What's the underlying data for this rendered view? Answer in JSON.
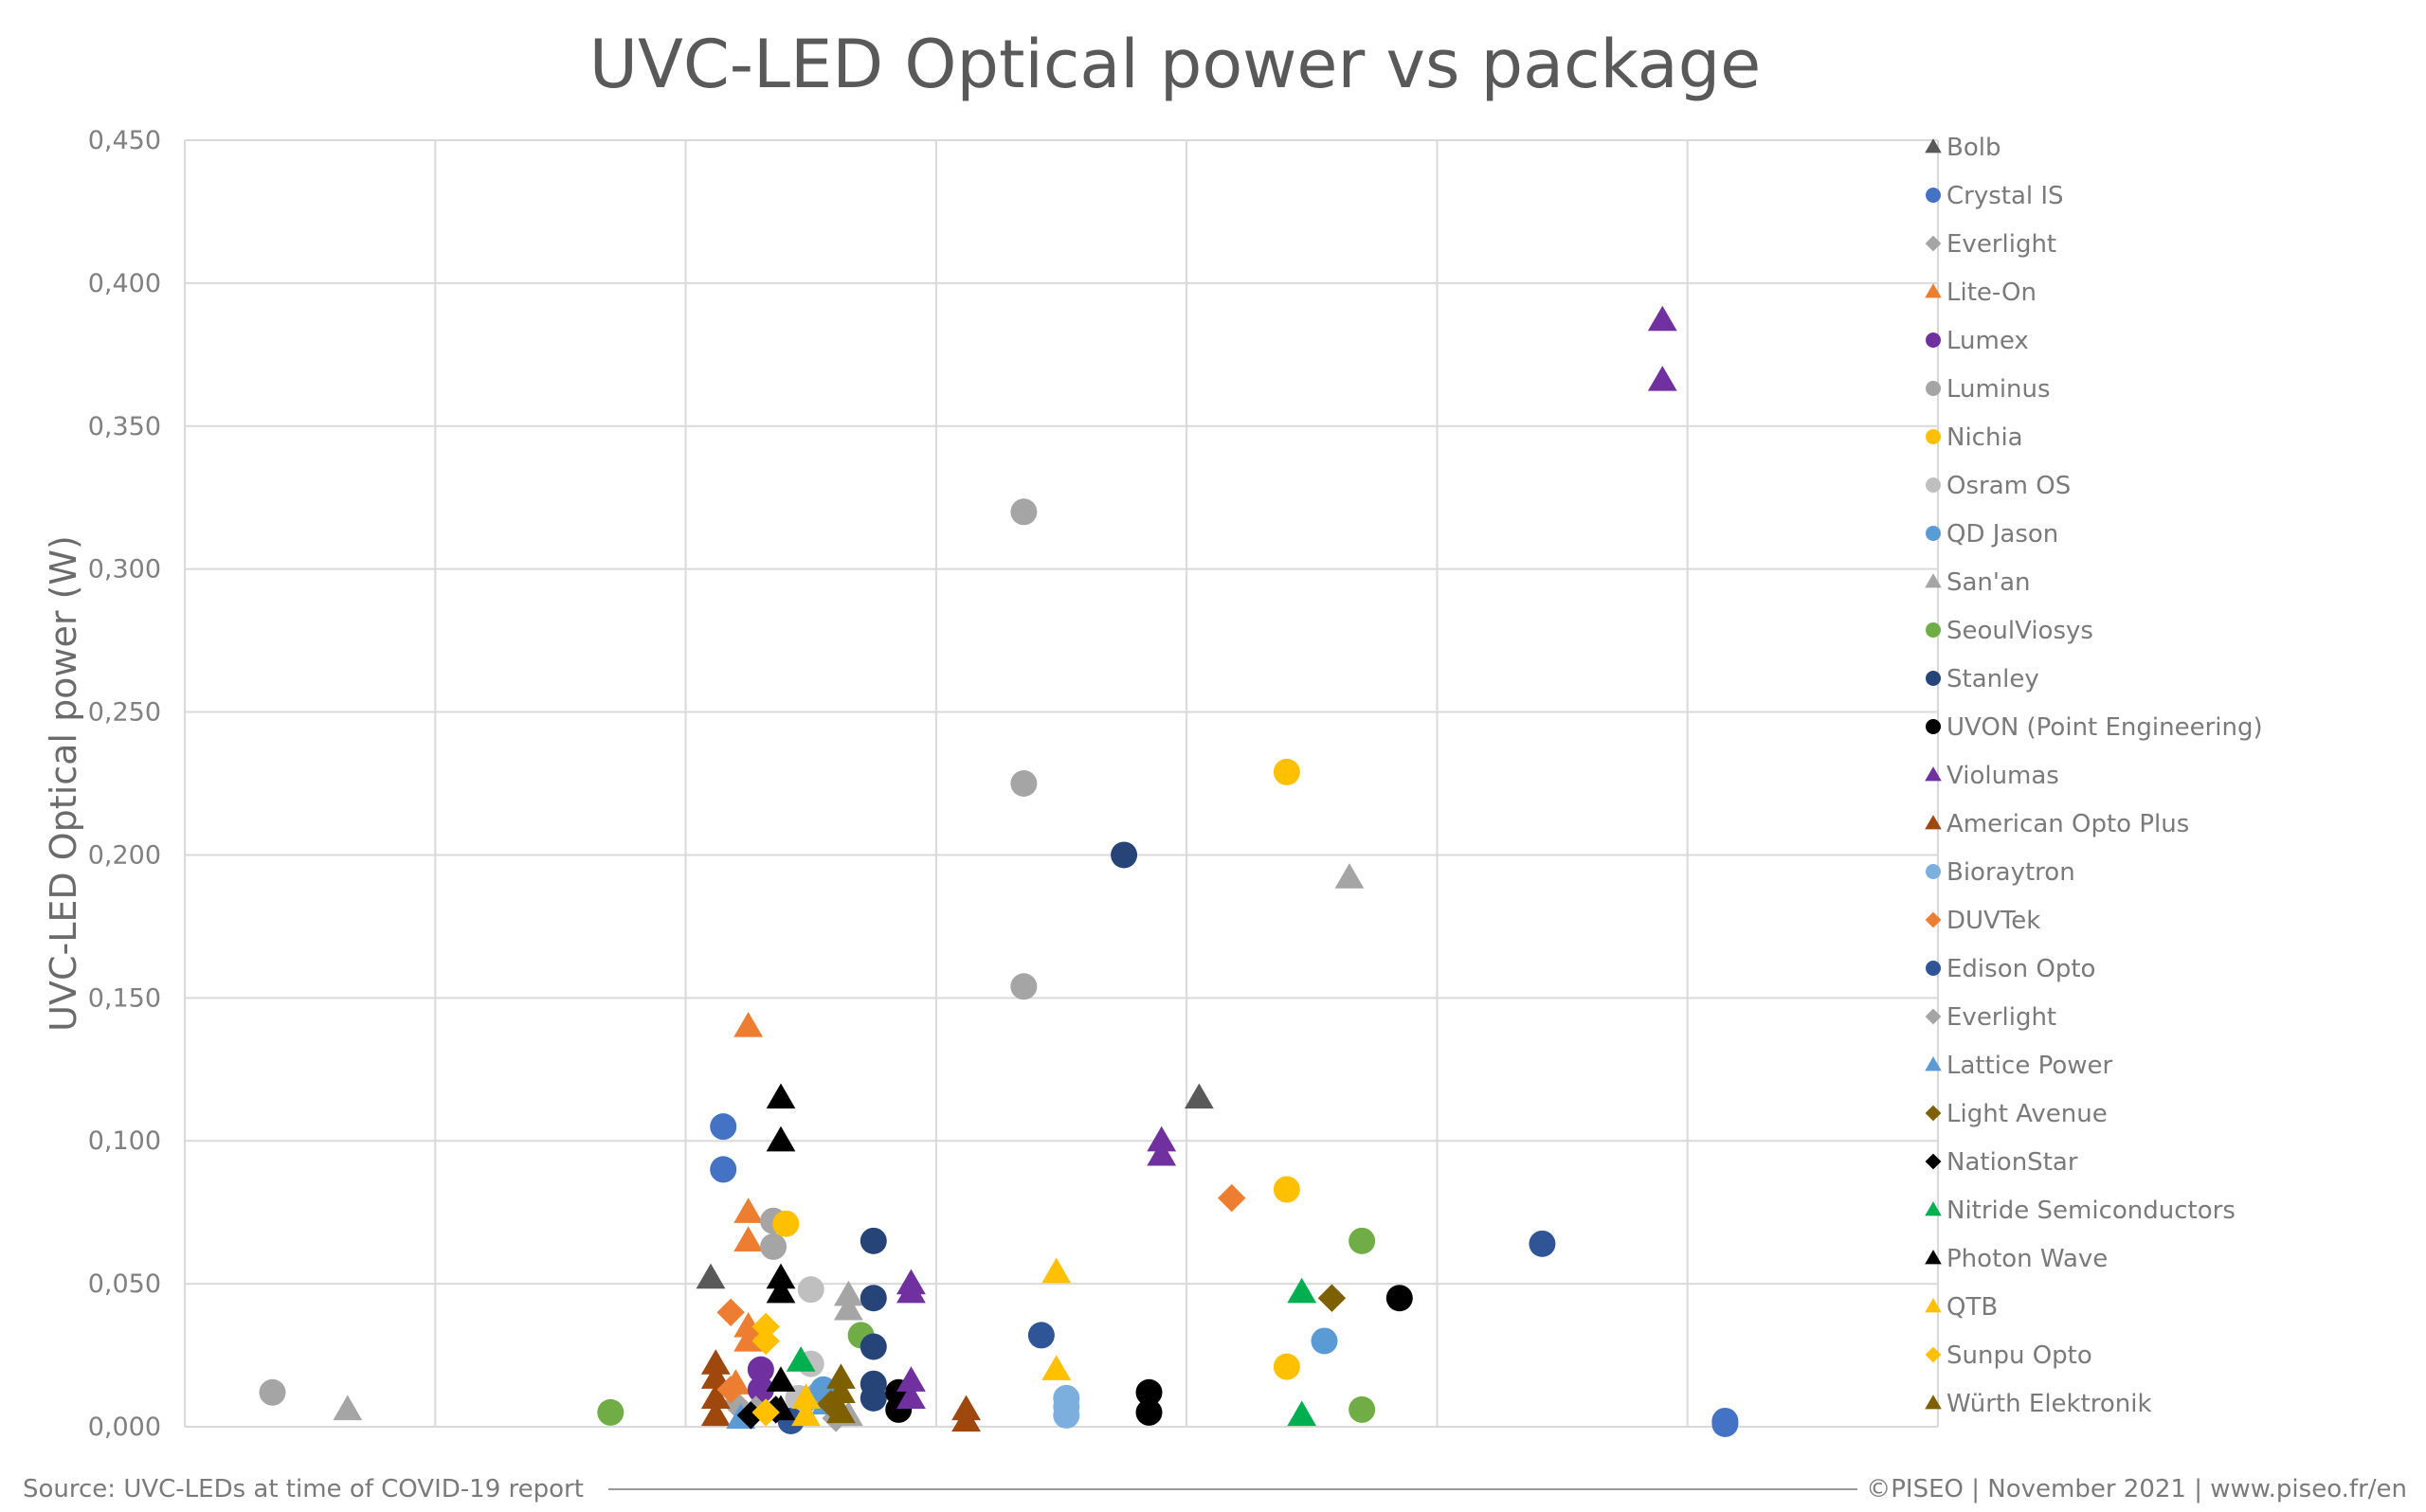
{
  "page": {
    "source_note": "Source: UVC-LEDs at time of COVID-19 report",
    "credit_note": "©PISEO | November 2021 | www.piseo.fr/en"
  },
  "chart_data": {
    "type": "scatter",
    "title": "UVC-LED Optical power vs package",
    "xlabel": "",
    "ylabel": "UVC-LED Optical power (W)",
    "ylim": [
      0,
      0.45
    ],
    "y_ticks": [
      "0,000",
      "0,050",
      "0,100",
      "0,150",
      "0,200",
      "0,250",
      "0,300",
      "0,350",
      "0,400",
      "0,450"
    ],
    "x_categories": 7,
    "grid": true,
    "legend_position": "right",
    "series": [
      {
        "name": "Bolb",
        "color": "#595959",
        "marker": "triangle",
        "points": [
          [
            2.1,
            0.052
          ],
          [
            4.05,
            0.115
          ]
        ]
      },
      {
        "name": "Crystal IS",
        "color": "#4472C4",
        "marker": "circle",
        "points": [
          [
            2.15,
            0.105
          ],
          [
            2.15,
            0.09
          ],
          [
            6.15,
            0.002
          ],
          [
            6.15,
            0.001
          ]
        ]
      },
      {
        "name": "Everlight",
        "color": "#A5A5A5",
        "marker": "diamond",
        "points": [
          [
            2.2,
            0.008
          ],
          [
            2.5,
            0.01
          ]
        ]
      },
      {
        "name": "Lite-On",
        "color": "#ED7D31",
        "marker": "triangle",
        "points": [
          [
            2.25,
            0.14
          ],
          [
            2.25,
            0.075
          ],
          [
            2.25,
            0.065
          ],
          [
            2.25,
            0.035
          ],
          [
            2.25,
            0.03
          ],
          [
            2.2,
            0.015
          ]
        ]
      },
      {
        "name": "Lumex",
        "color": "#7030A0",
        "marker": "circle",
        "points": [
          [
            2.3,
            0.02
          ],
          [
            2.3,
            0.013
          ]
        ]
      },
      {
        "name": "Luminus",
        "color": "#A5A5A5",
        "marker": "circle",
        "points": [
          [
            0.35,
            0.012
          ],
          [
            3.35,
            0.32
          ],
          [
            3.35,
            0.225
          ],
          [
            3.35,
            0.154
          ],
          [
            2.35,
            0.072
          ],
          [
            2.35,
            0.063
          ]
        ]
      },
      {
        "name": "Nichia",
        "color": "#FFC000",
        "marker": "circle",
        "points": [
          [
            2.4,
            0.071
          ],
          [
            4.4,
            0.229
          ],
          [
            4.4,
            0.083
          ],
          [
            4.4,
            0.021
          ]
        ]
      },
      {
        "name": "Osram OS",
        "color": "#BFBFBF",
        "marker": "circle",
        "points": [
          [
            2.5,
            0.048
          ],
          [
            2.5,
            0.022
          ],
          [
            2.45,
            0.01
          ]
        ]
      },
      {
        "name": "QD Jason",
        "color": "#5B9BD5",
        "marker": "circle",
        "points": [
          [
            4.55,
            0.03
          ],
          [
            2.55,
            0.013
          ]
        ]
      },
      {
        "name": "San'an",
        "color": "#A5A5A5",
        "marker": "triangle",
        "points": [
          [
            0.65,
            0.006
          ],
          [
            2.65,
            0.046
          ],
          [
            2.65,
            0.041
          ],
          [
            4.65,
            0.192
          ],
          [
            2.65,
            0.004
          ]
        ]
      },
      {
        "name": "SeoulViosys",
        "color": "#70AD47",
        "marker": "circle",
        "points": [
          [
            1.7,
            0.005
          ],
          [
            2.7,
            0.032
          ],
          [
            4.7,
            0.065
          ],
          [
            4.7,
            0.006
          ]
        ]
      },
      {
        "name": "Stanley",
        "color": "#264478",
        "marker": "circle",
        "points": [
          [
            2.75,
            0.065
          ],
          [
            2.75,
            0.045
          ],
          [
            2.75,
            0.028
          ],
          [
            2.75,
            0.015
          ],
          [
            2.75,
            0.01
          ],
          [
            3.75,
            0.2
          ]
        ]
      },
      {
        "name": "UVON (Point Engineering)",
        "color": "#000000",
        "marker": "circle",
        "points": [
          [
            2.85,
            0.012
          ],
          [
            2.85,
            0.006
          ],
          [
            3.85,
            0.012
          ],
          [
            3.85,
            0.005
          ],
          [
            4.85,
            0.045
          ]
        ]
      },
      {
        "name": "Violumas",
        "color": "#7030A0",
        "marker": "triangle",
        "points": [
          [
            2.9,
            0.05
          ],
          [
            2.9,
            0.047
          ],
          [
            2.9,
            0.016
          ],
          [
            2.9,
            0.01
          ],
          [
            3.9,
            0.1
          ],
          [
            3.9,
            0.095
          ],
          [
            5.9,
            0.387
          ],
          [
            5.9,
            0.366
          ]
        ]
      },
      {
        "name": "American Opto Plus",
        "color": "#9E480E",
        "marker": "triangle",
        "points": [
          [
            2.12,
            0.022
          ],
          [
            2.12,
            0.017
          ],
          [
            2.12,
            0.01
          ],
          [
            2.12,
            0.004
          ],
          [
            3.12,
            0.006
          ],
          [
            3.12,
            0.002
          ]
        ]
      },
      {
        "name": "Bioraytron",
        "color": "#7CAFDD",
        "marker": "circle",
        "points": [
          [
            3.52,
            0.01
          ],
          [
            3.52,
            0.007
          ],
          [
            3.52,
            0.004
          ]
        ]
      },
      {
        "name": "DUVTek",
        "color": "#ED7D31",
        "marker": "diamond",
        "points": [
          [
            2.18,
            0.04
          ],
          [
            2.18,
            0.013
          ],
          [
            4.18,
            0.08
          ]
        ]
      },
      {
        "name": "Edison Opto",
        "color": "#2F5597",
        "marker": "circle",
        "points": [
          [
            3.42,
            0.032
          ],
          [
            5.42,
            0.064
          ],
          [
            2.42,
            0.002
          ]
        ]
      },
      {
        "name": "Everlight",
        "color": "#A5A5A5",
        "marker": "diamond",
        "points": [
          [
            2.28,
            0.006
          ],
          [
            2.6,
            0.003
          ]
        ]
      },
      {
        "name": "Lattice Power",
        "color": "#5B9BD5",
        "marker": "triangle",
        "points": [
          [
            2.22,
            0.003
          ],
          [
            2.56,
            0.008
          ]
        ]
      },
      {
        "name": "Light Avenue",
        "color": "#7F6000",
        "marker": "diamond",
        "points": [
          [
            4.58,
            0.045
          ],
          [
            2.58,
            0.008
          ]
        ]
      },
      {
        "name": "NationStar",
        "color": "#000000",
        "marker": "diamond",
        "points": [
          [
            2.26,
            0.004
          ],
          [
            2.36,
            0.006
          ]
        ]
      },
      {
        "name": "Nitride Semiconductors",
        "color": "#00B050",
        "marker": "triangle",
        "points": [
          [
            2.46,
            0.023
          ],
          [
            4.46,
            0.047
          ],
          [
            4.46,
            0.004
          ]
        ]
      },
      {
        "name": "Photon Wave",
        "color": "#000000",
        "marker": "triangle",
        "points": [
          [
            2.38,
            0.115
          ],
          [
            2.38,
            0.1
          ],
          [
            2.38,
            0.052
          ],
          [
            2.38,
            0.047
          ],
          [
            2.38,
            0.016
          ],
          [
            2.38,
            0.006
          ]
        ]
      },
      {
        "name": "QTB",
        "color": "#FFC000",
        "marker": "triangle",
        "points": [
          [
            3.48,
            0.054
          ],
          [
            3.48,
            0.02
          ],
          [
            2.48,
            0.01
          ],
          [
            2.48,
            0.004
          ]
        ]
      },
      {
        "name": "Sunpu Opto",
        "color": "#FFC000",
        "marker": "diamond",
        "points": [
          [
            2.32,
            0.035
          ],
          [
            2.32,
            0.03
          ],
          [
            2.32,
            0.005
          ]
        ]
      },
      {
        "name": "Würth Elektronik",
        "color": "#7F6000",
        "marker": "triangle",
        "points": [
          [
            2.62,
            0.017
          ],
          [
            2.62,
            0.012
          ],
          [
            2.62,
            0.005
          ]
        ]
      }
    ]
  }
}
